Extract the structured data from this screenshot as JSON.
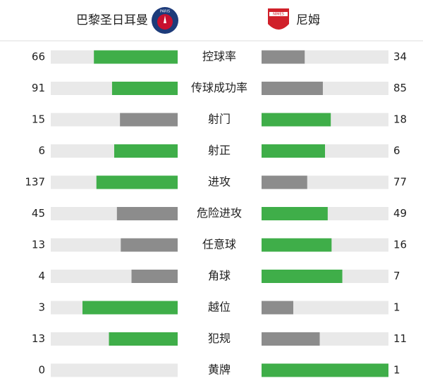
{
  "header": {
    "home": "巴黎圣日耳曼",
    "away": "尼姆",
    "home_logo_text": "PARIS",
    "away_logo_text": "NÎMES"
  },
  "stats": [
    {
      "label": "控球率",
      "home": 66,
      "away": 34
    },
    {
      "label": "传球成功率",
      "home": 91,
      "away": 85
    },
    {
      "label": "射门",
      "home": 15,
      "away": 18
    },
    {
      "label": "射正",
      "home": 6,
      "away": 6
    },
    {
      "label": "进攻",
      "home": 137,
      "away": 77
    },
    {
      "label": "危险进攻",
      "home": 45,
      "away": 49
    },
    {
      "label": "任意球",
      "home": 13,
      "away": 16
    },
    {
      "label": "角球",
      "home": 4,
      "away": 7
    },
    {
      "label": "越位",
      "home": 3,
      "away": 1
    },
    {
      "label": "犯规",
      "home": 13,
      "away": 11
    },
    {
      "label": "黄牌",
      "home": 0,
      "away": 1
    }
  ]
}
